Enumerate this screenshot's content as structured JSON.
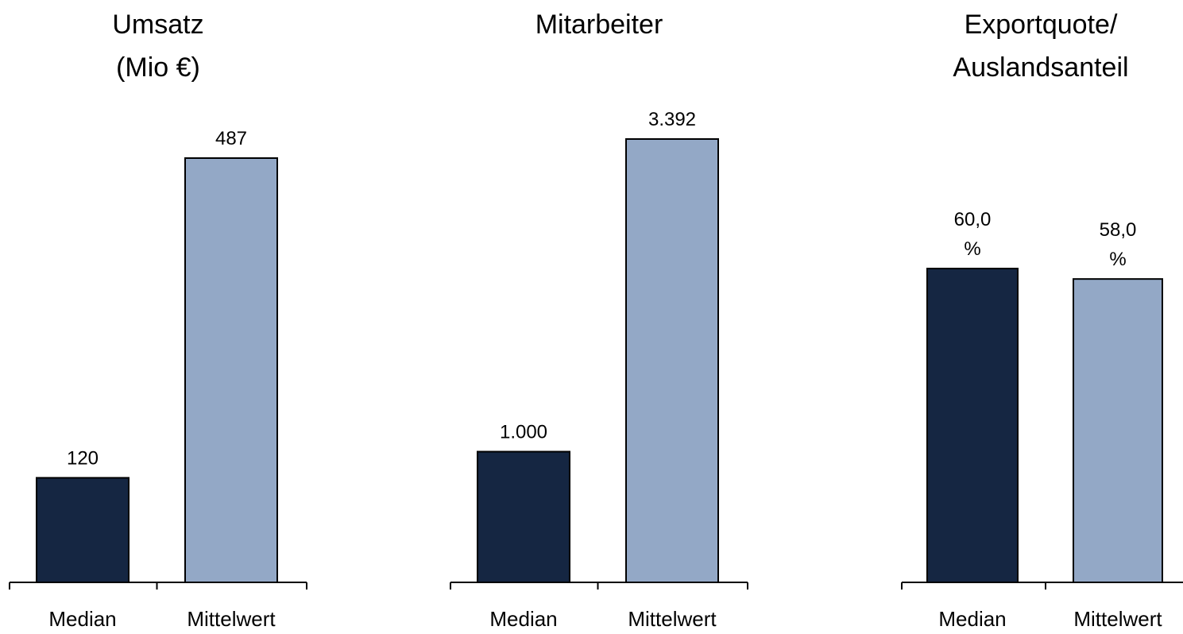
{
  "colors": {
    "median": "#152642",
    "mittelwert": "#93A8C6",
    "stroke": "#000000"
  },
  "chart_data": [
    {
      "type": "bar",
      "title_lines": [
        "Umsatz",
        "(Mio €)"
      ],
      "categories": [
        "Median",
        "Mittelwert"
      ],
      "values": [
        120,
        487
      ],
      "value_labels": [
        [
          "120"
        ],
        [
          "487"
        ]
      ]
    },
    {
      "type": "bar",
      "title_lines": [
        "Mitarbeiter"
      ],
      "categories": [
        "Median",
        "Mittelwert"
      ],
      "values": [
        1000,
        3392
      ],
      "value_labels": [
        [
          "1.000"
        ],
        [
          "3.392"
        ]
      ]
    },
    {
      "type": "bar",
      "title_lines": [
        "Exportquote/",
        "Auslandsanteil"
      ],
      "categories": [
        "Median",
        "Mittelwert"
      ],
      "values": [
        60.0,
        58.0
      ],
      "value_labels": [
        [
          "60,0",
          "%"
        ],
        [
          "58,0",
          "%"
        ]
      ]
    }
  ]
}
